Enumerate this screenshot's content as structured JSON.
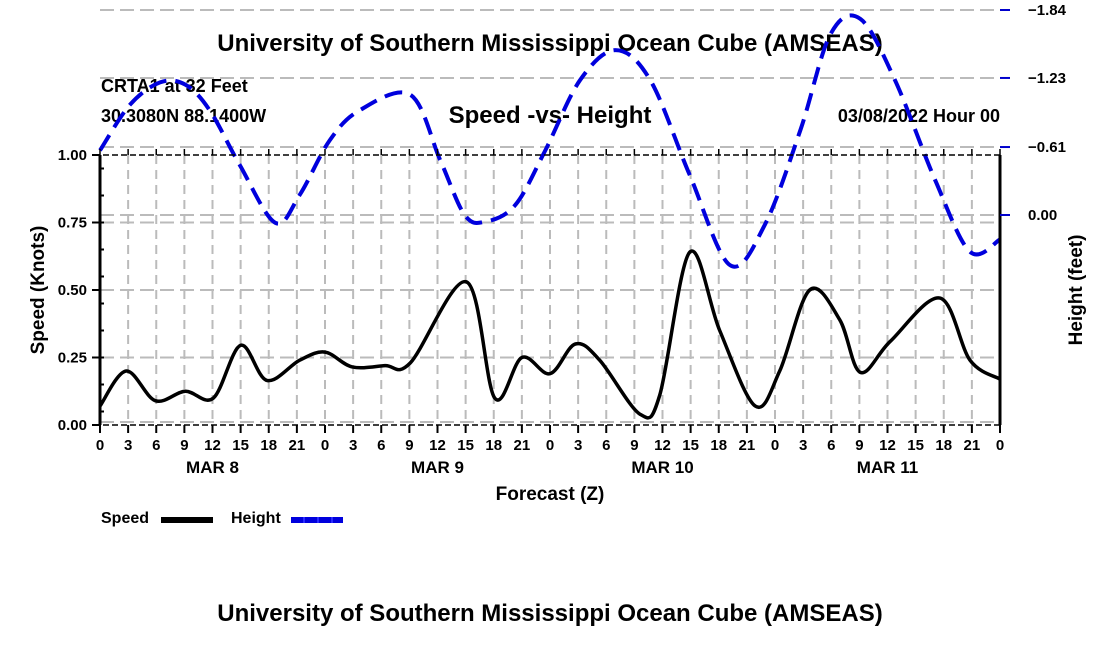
{
  "header": {
    "title": "University of Southern Mississippi Ocean Cube (AMSEAS)",
    "station": "CRTA1 at 32 Feet",
    "coords": "30.3080N  88.1400W",
    "date": "03/08/2022 Hour 00"
  },
  "footer": {
    "title": "University of Southern Mississippi Ocean Cube (AMSEAS)"
  },
  "chart_data": {
    "type": "line",
    "title": "Speed -vs- Height",
    "xlabel": "Forecast (Z)",
    "ylabel": "Speed (Knots)",
    "y2label": "Height (feet)",
    "xlim_hours": [
      0,
      96
    ],
    "ylim": [
      0,
      1
    ],
    "y2lim": [
      -1.88,
      0.55
    ],
    "yticks": [
      "0.00",
      "0.25",
      "0.50",
      "0.75",
      "1.00"
    ],
    "ytick_values": [
      0,
      0.25,
      0.5,
      0.75,
      1.0
    ],
    "y2ticks": [
      "0.00",
      "−0.61",
      "−1.23",
      "−1.84"
    ],
    "y2tick_values": [
      0,
      -0.61,
      -1.23,
      -1.84
    ],
    "xtick_hours": [
      0,
      3,
      6,
      9,
      12,
      15,
      18,
      21,
      24,
      27,
      30,
      33,
      36,
      39,
      42,
      45,
      48,
      51,
      54,
      57,
      60,
      63,
      66,
      69,
      72,
      75,
      78,
      81,
      84,
      87,
      90,
      93,
      96
    ],
    "xtick_labels": [
      "0",
      "3",
      "6",
      "9",
      "12",
      "15",
      "18",
      "21",
      "0",
      "3",
      "6",
      "9",
      "12",
      "15",
      "18",
      "21",
      "0",
      "3",
      "6",
      "9",
      "12",
      "15",
      "18",
      "21",
      "0",
      "3",
      "6",
      "9",
      "12",
      "15",
      "18",
      "21",
      "0"
    ],
    "day_labels": [
      {
        "label": "MAR 8",
        "center_hour": 12
      },
      {
        "label": "MAR 9",
        "center_hour": 36
      },
      {
        "label": "MAR 10",
        "center_hour": 60
      },
      {
        "label": "MAR 11",
        "center_hour": 84
      }
    ],
    "grid": true,
    "legend": "bottom-left",
    "series": [
      {
        "name": "Speed",
        "axis": "left",
        "color": "#000000",
        "style": "solid",
        "x": [
          0,
          2.8,
          5.9,
          9.1,
          12.1,
          15.0,
          17.8,
          21.3,
          24.0,
          26.9,
          30.4,
          33.1,
          39.1,
          42.1,
          45.0,
          48.0,
          50.7,
          53.3,
          57.6,
          59.7,
          62.9,
          66.1,
          69.9,
          72.5,
          75.7,
          78.9,
          81.1,
          84.3,
          89.6,
          92.8,
          96.0
        ],
        "values": [
          0.07,
          0.2,
          0.09,
          0.125,
          0.1,
          0.295,
          0.165,
          0.24,
          0.27,
          0.215,
          0.22,
          0.23,
          0.53,
          0.1,
          0.25,
          0.19,
          0.3,
          0.24,
          0.04,
          0.11,
          0.64,
          0.35,
          0.07,
          0.2,
          0.5,
          0.39,
          0.195,
          0.31,
          0.47,
          0.24,
          0.17
        ]
      },
      {
        "name": "Height",
        "axis": "right",
        "color": "#0000dd",
        "style": "dashed",
        "x": [
          0,
          3.2,
          6.4,
          9.1,
          11.7,
          14.9,
          18.7,
          21.3,
          24.5,
          27.7,
          33.1,
          36.3,
          38.9,
          41.1,
          44.3,
          47.5,
          51.2,
          55.0,
          58.7,
          62.9,
          67.2,
          70.9,
          74.7,
          77.9,
          81.1,
          84.8,
          89.1,
          92.8,
          96.0
        ],
        "values": [
          -0.58,
          -0.99,
          -1.19,
          -1.17,
          -0.94,
          -0.45,
          0.07,
          -0.18,
          -0.67,
          -0.94,
          -1.08,
          -0.49,
          0.0,
          0.06,
          -0.09,
          -0.58,
          -1.21,
          -1.48,
          -1.21,
          -0.36,
          0.45,
          0.09,
          -0.76,
          -1.62,
          -1.76,
          -1.21,
          -0.31,
          0.33,
          0.22
        ]
      }
    ]
  },
  "legend": [
    {
      "label": "Speed"
    },
    {
      "label": "Height"
    }
  ]
}
